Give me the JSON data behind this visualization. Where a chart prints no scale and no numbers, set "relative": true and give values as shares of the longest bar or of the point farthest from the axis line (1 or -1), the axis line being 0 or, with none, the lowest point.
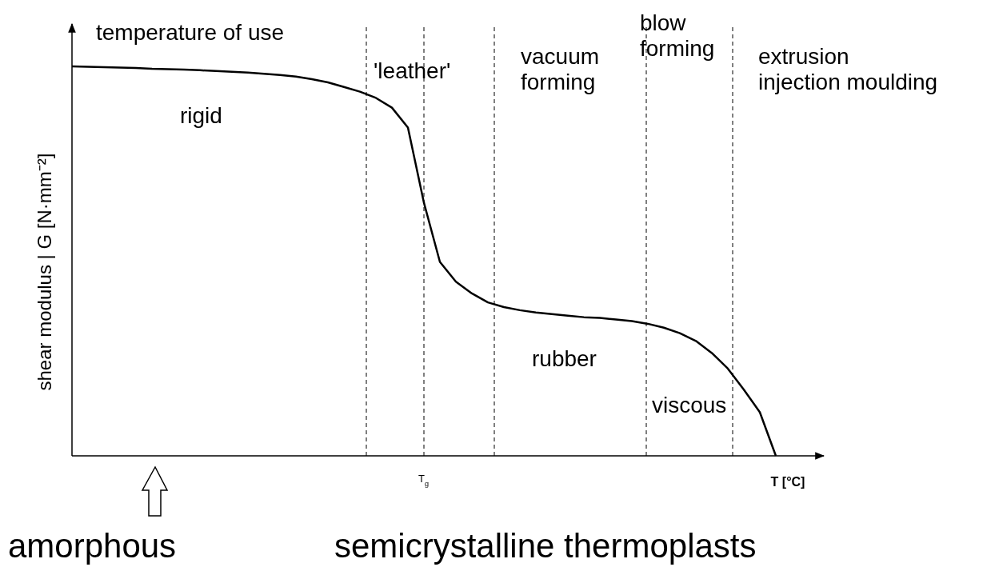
{
  "chart_data": {
    "type": "line",
    "relative": true,
    "ylabel": "shear modulus | G [N·mm⁻²]",
    "xlabel": "T [°C]",
    "categories": [
      null,
      null,
      null,
      null,
      null,
      null,
      null,
      null,
      null,
      null,
      null,
      null,
      null,
      null,
      null,
      null,
      null,
      null,
      null,
      null,
      null,
      null,
      null,
      null,
      null,
      null,
      null,
      null,
      null,
      null,
      null,
      null,
      null,
      null,
      null,
      null,
      null,
      null,
      null,
      null,
      null,
      null,
      null,
      null,
      null
    ],
    "series": [
      {
        "color": "#000000",
        "values": [
          1.0,
          0.999,
          0.998,
          0.997,
          0.996,
          0.994,
          0.993,
          0.992,
          0.99,
          0.988,
          0.986,
          0.984,
          0.981,
          0.978,
          0.974,
          0.967,
          0.959,
          0.947,
          0.935,
          0.919,
          0.894,
          0.843,
          0.65,
          0.498,
          0.447,
          0.417,
          0.394,
          0.382,
          0.374,
          0.368,
          0.364,
          0.36,
          0.356,
          0.354,
          0.35,
          0.346,
          0.339,
          0.329,
          0.315,
          0.295,
          0.264,
          0.224,
          0.17,
          0.112,
          0.0
        ]
      }
    ],
    "annotations": [
      "temperature of use",
      "rigid",
      "'leather'",
      "vacuum\nforming",
      "blow\nforming",
      "extrusion\ninjection moulding",
      "rubber",
      "viscous",
      "amorphous",
      "semicrystalline thermoplasts",
      "T$_{g}$"
    ],
    "legend": false,
    "grid": false,
    "marker": "none",
    "line_style": "solid"
  }
}
